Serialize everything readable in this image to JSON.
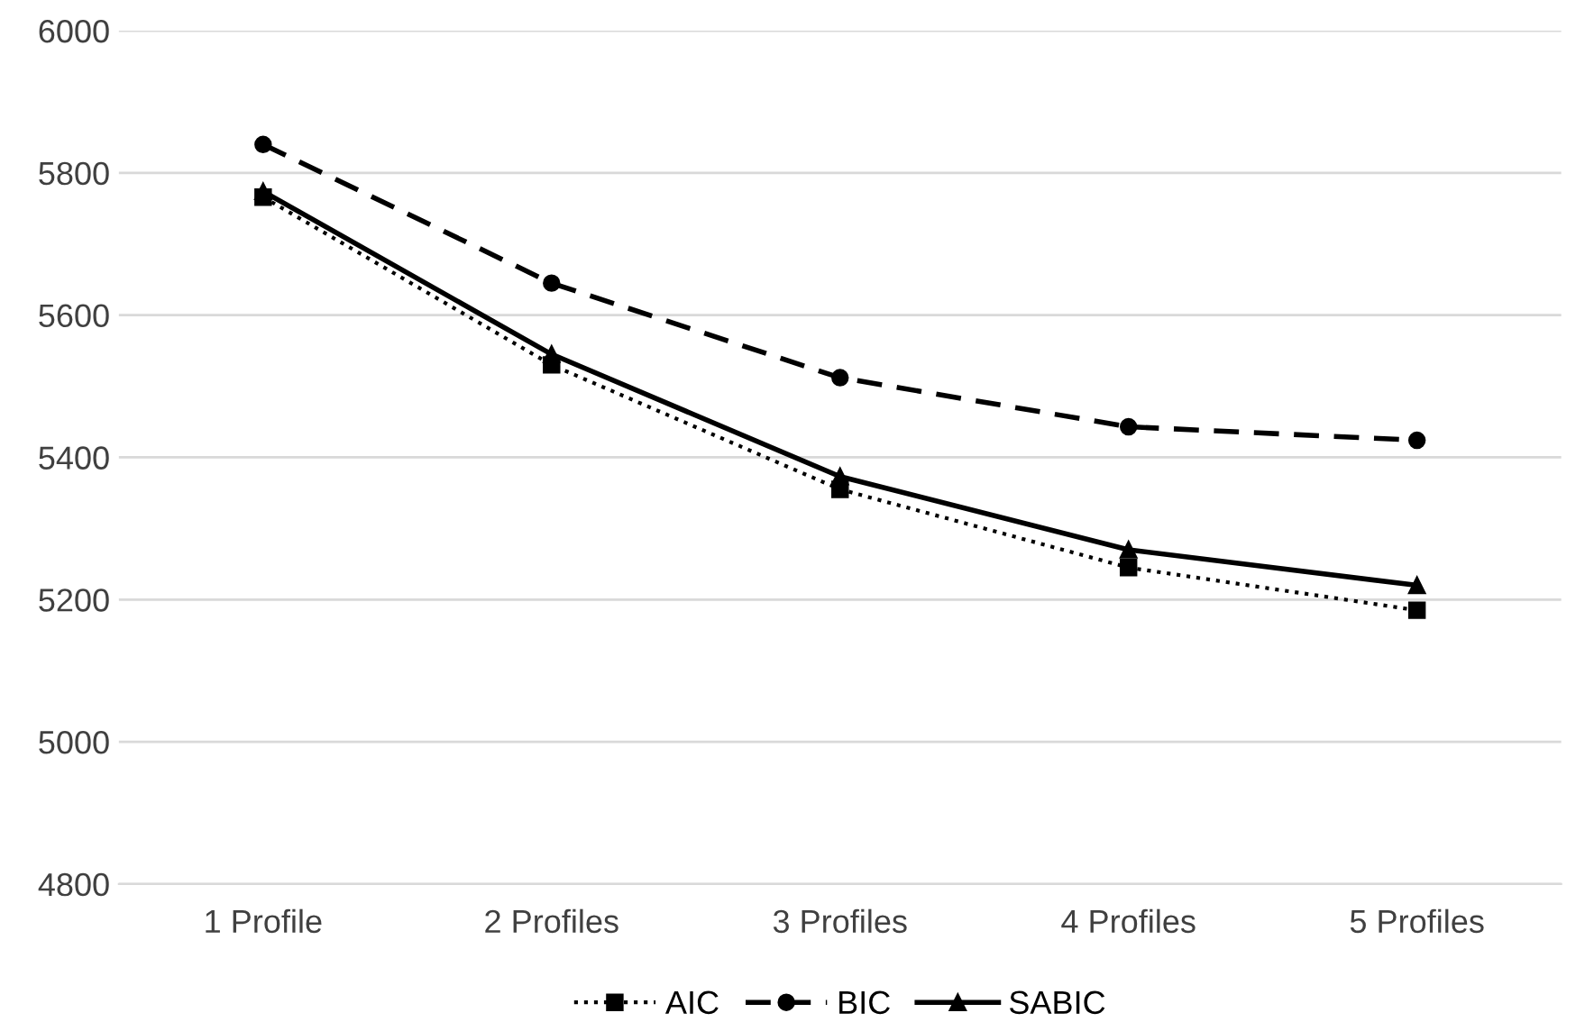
{
  "chart_data": {
    "type": "line",
    "categories": [
      "1 Profile",
      "2 Profiles",
      "3 Profiles",
      "4 Profiles",
      "5 Profiles"
    ],
    "series": [
      {
        "name": "AIC",
        "color": "#000000",
        "marker": "square",
        "line_style": "dotted",
        "values": [
          5766,
          5530,
          5355,
          5245,
          5185
        ]
      },
      {
        "name": "BIC",
        "color": "#000000",
        "marker": "circle",
        "line_style": "dashed",
        "values": [
          5840,
          5645,
          5512,
          5443,
          5424
        ]
      },
      {
        "name": "SABIC",
        "color": "#000000",
        "marker": "triangle",
        "line_style": "solid",
        "values": [
          5774,
          5545,
          5373,
          5270,
          5220
        ]
      }
    ],
    "ylim": [
      4800,
      6000
    ],
    "yticks": [
      4800,
      5000,
      5200,
      5400,
      5600,
      5800,
      6000
    ],
    "grid": "y",
    "legend": "bottom"
  }
}
